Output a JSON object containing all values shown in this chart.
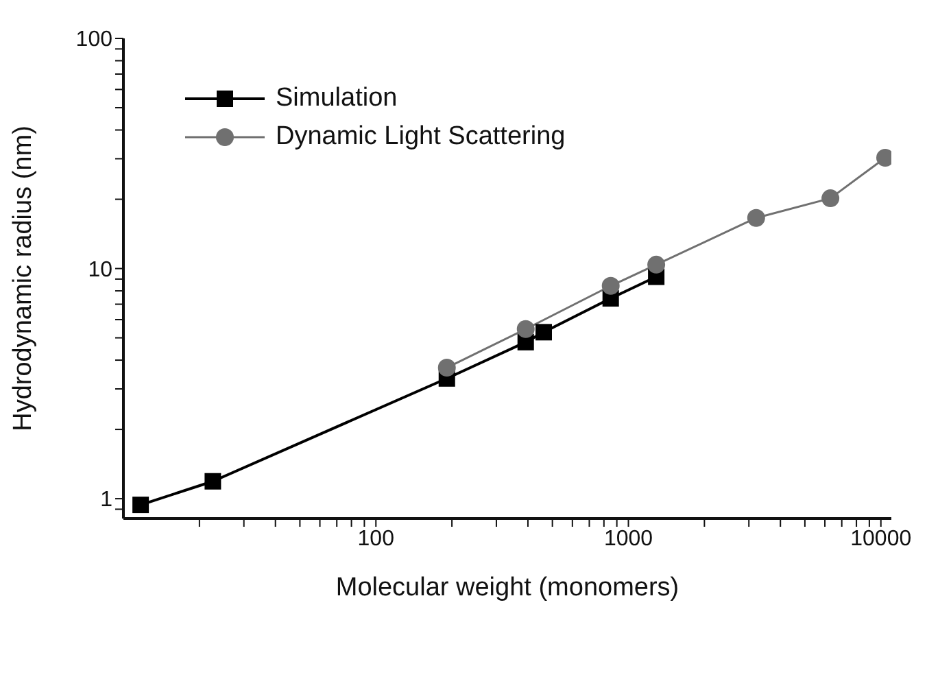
{
  "chart_data": {
    "type": "line",
    "xlabel": "Molecular weight (monomers)",
    "ylabel": "Hydrodynamic radius (nm)",
    "log": "xy",
    "xlim": [
      10,
      11000
    ],
    "ylim": [
      0.82,
      100
    ],
    "xticks": [
      {
        "value": 20,
        "label": null
      },
      {
        "value": 30,
        "label": null
      },
      {
        "value": 40,
        "label": null
      },
      {
        "value": 50,
        "label": null
      },
      {
        "value": 60,
        "label": null
      },
      {
        "value": 70,
        "label": null
      },
      {
        "value": 80,
        "label": null
      },
      {
        "value": 90,
        "label": null
      },
      100,
      {
        "value": 200,
        "label": null
      },
      {
        "value": 300,
        "label": null
      },
      {
        "value": 400,
        "label": null
      },
      {
        "value": 500,
        "label": null
      },
      {
        "value": 600,
        "label": null
      },
      {
        "value": 700,
        "label": null
      },
      {
        "value": 800,
        "label": null
      },
      {
        "value": 900,
        "label": null
      },
      1000,
      {
        "value": 2000,
        "label": null
      },
      {
        "value": 3000,
        "label": null
      },
      {
        "value": 4000,
        "label": null
      },
      {
        "value": 5000,
        "label": null
      },
      {
        "value": 6000,
        "label": null
      },
      {
        "value": 7000,
        "label": null
      },
      {
        "value": 8000,
        "label": null
      },
      {
        "value": 9000,
        "label": null
      },
      10000
    ],
    "yticks": [
      {
        "value": 0.9,
        "label": null
      },
      1,
      {
        "value": 2,
        "label": null
      },
      {
        "value": 3,
        "label": null
      },
      {
        "value": 4,
        "label": null
      },
      {
        "value": 5,
        "label": null
      },
      {
        "value": 6,
        "label": null
      },
      {
        "value": 7,
        "label": null
      },
      {
        "value": 8,
        "label": null
      },
      {
        "value": 9,
        "label": null
      },
      10,
      {
        "value": 20,
        "label": null
      },
      {
        "value": 30,
        "label": null
      },
      {
        "value": 40,
        "label": null
      },
      {
        "value": 50,
        "label": null
      },
      {
        "value": 60,
        "label": null
      },
      {
        "value": 70,
        "label": null
      },
      {
        "value": 80,
        "label": null
      },
      {
        "value": 90,
        "label": null
      },
      100
    ],
    "legend": "top left",
    "line_style": "solid",
    "series": [
      {
        "name": "Simulation",
        "color": "#000000",
        "marker": "square",
        "x": [
          11.7,
          22.6,
          191,
          392,
          462,
          851,
          1289
        ],
        "values": [
          0.94,
          1.19,
          3.33,
          4.79,
          5.29,
          7.42,
          9.21
        ]
      },
      {
        "name": "Dynamic Light Scattering",
        "color": "#707070",
        "marker": "circle",
        "x": [
          191,
          392,
          851,
          1289,
          3206,
          6310,
          10400
        ],
        "values": [
          3.71,
          5.46,
          8.41,
          10.4,
          16.6,
          20.2,
          30.3
        ]
      }
    ]
  }
}
